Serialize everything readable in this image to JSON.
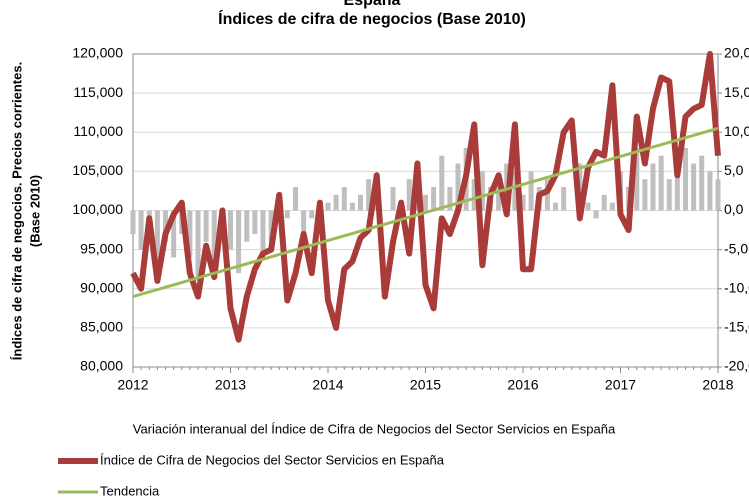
{
  "chart_data": {
    "type": "line",
    "title": "Índices de cifra de negocios (Base 2010)",
    "supertitle": "España",
    "ylabel": [
      "Índices de cifra de negocios. Precios corrientes.",
      "(Base 2010)"
    ],
    "xlim": [
      2012,
      2018
    ],
    "xticks": [
      2012,
      2013,
      2014,
      2015,
      2016,
      2017,
      2018
    ],
    "ylim": [
      80000,
      120000
    ],
    "yticks": [
      {
        "value": 80000,
        "label": "80,000"
      },
      {
        "value": 85000,
        "label": "85,000"
      },
      {
        "value": 90000,
        "label": "90,000"
      },
      {
        "value": 95000,
        "label": "95,000"
      },
      {
        "value": 100000,
        "label": "100,000"
      },
      {
        "value": 105000,
        "label": "105,000"
      },
      {
        "value": 110000,
        "label": "110,000"
      },
      {
        "value": 115000,
        "label": "115,000"
      },
      {
        "value": 120000,
        "label": "120,000"
      }
    ],
    "y2lim": [
      -20,
      20
    ],
    "y2ticks": [
      {
        "value": -20,
        "label": "-20,0"
      },
      {
        "value": -15,
        "label": "-15,0"
      },
      {
        "value": -10,
        "label": "-10,0"
      },
      {
        "value": -5,
        "label": "-5,0"
      },
      {
        "value": 0,
        "label": "0,0"
      },
      {
        "value": 5,
        "label": "5,0"
      },
      {
        "value": 10,
        "label": "10,0"
      },
      {
        "value": 15,
        "label": "15,0"
      },
      {
        "value": 20,
        "label": "20,0"
      }
    ],
    "grid": true,
    "x": [
      2012,
      2012.083,
      2012.167,
      2012.25,
      2012.333,
      2012.417,
      2012.5,
      2012.583,
      2012.667,
      2012.75,
      2012.833,
      2012.917,
      2013,
      2013.083,
      2013.167,
      2013.25,
      2013.333,
      2013.417,
      2013.5,
      2013.583,
      2013.667,
      2013.75,
      2013.833,
      2013.917,
      2014,
      2014.083,
      2014.167,
      2014.25,
      2014.333,
      2014.417,
      2014.5,
      2014.583,
      2014.667,
      2014.75,
      2014.833,
      2014.917,
      2015,
      2015.083,
      2015.167,
      2015.25,
      2015.333,
      2015.417,
      2015.5,
      2015.583,
      2015.667,
      2015.75,
      2015.833,
      2015.917,
      2016,
      2016.083,
      2016.167,
      2016.25,
      2016.333,
      2016.417,
      2016.5,
      2016.583,
      2016.667,
      2016.75,
      2016.833,
      2016.917,
      2017,
      2017.083,
      2017.167,
      2017.25,
      2017.333,
      2017.417,
      2017.5,
      2017.583,
      2017.667,
      2017.75,
      2017.833,
      2017.917,
      2018
    ],
    "series": [
      {
        "name": "Variación interanual del Índice de Cifra de Negocios del Sector Servicios en España",
        "kind": "bar",
        "axis": "y2",
        "color": "#bfbfbf",
        "values": [
          -3,
          -5,
          -2,
          -8,
          -4,
          -6,
          -3,
          -6,
          -9,
          -4,
          -7,
          -2,
          -5,
          -8,
          -4,
          -3,
          -6,
          -4,
          0,
          -1,
          3,
          -3,
          -1,
          1,
          1,
          2,
          3,
          1,
          2,
          4,
          2,
          0,
          3,
          -1,
          4,
          2,
          2,
          3,
          7,
          3,
          6,
          8,
          4,
          5,
          3,
          4,
          6,
          5,
          2,
          5,
          3,
          4,
          1,
          3,
          0,
          6,
          1,
          -1,
          2,
          1,
          5,
          3,
          8,
          4,
          6,
          7,
          4,
          5,
          8,
          6,
          7,
          5,
          4
        ]
      },
      {
        "name": "Índice de Cifra de Negocios del Sector Servicios en España",
        "kind": "line",
        "color": "#a93b38",
        "values": [
          92000,
          90000,
          99000,
          91000,
          97000,
          99500,
          101000,
          92000,
          89000,
          95500,
          91500,
          100000,
          87500,
          83500,
          89000,
          92500,
          94500,
          95000,
          102000,
          88500,
          92000,
          97000,
          92000,
          101000,
          88500,
          85000,
          92500,
          93500,
          96500,
          97500,
          104500,
          89000,
          96000,
          101000,
          94500,
          106000,
          90500,
          87500,
          99000,
          97000,
          100000,
          104500,
          111000,
          93000,
          102000,
          104500,
          99500,
          111000,
          92500,
          92500,
          102000,
          102500,
          104500,
          110000,
          111500,
          99000,
          105500,
          107500,
          107000,
          116000,
          99500,
          97500,
          112000,
          106000,
          113000,
          117000,
          116500,
          104500,
          112000,
          113000,
          113500,
          120000,
          107000
        ]
      },
      {
        "name": "Tendencia",
        "kind": "line",
        "color": "#9bbb59",
        "x": [
          2012,
          2018
        ],
        "values": [
          89000,
          110500
        ]
      }
    ]
  }
}
